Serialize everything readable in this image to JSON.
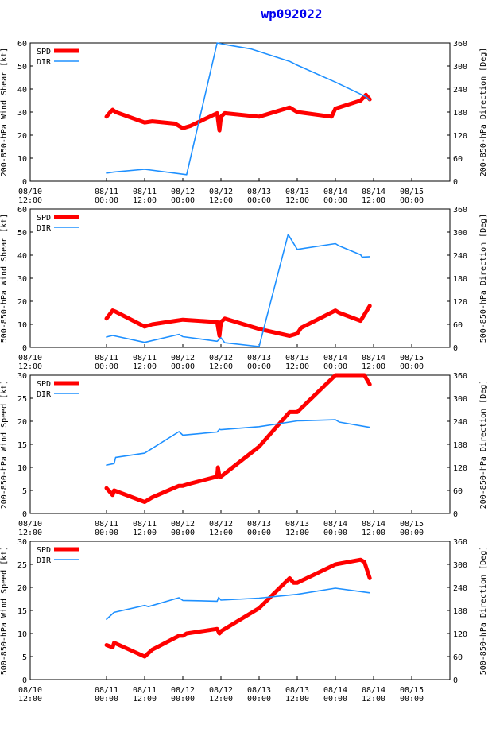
{
  "title": "wp092022",
  "colors": {
    "spd": "#ff0000",
    "dir": "#1e90ff",
    "axis": "#000000"
  },
  "x_ticks": [
    {
      "x": -1,
      "date": "08/10",
      "time": "12:00"
    },
    {
      "x": 0,
      "date": "08/11",
      "time": "00:00"
    },
    {
      "x": 0.5,
      "date": "08/11",
      "time": "12:00"
    },
    {
      "x": 1,
      "date": "08/12",
      "time": "00:00"
    },
    {
      "x": 1.5,
      "date": "08/12",
      "time": "12:00"
    },
    {
      "x": 2,
      "date": "08/13",
      "time": "00:00"
    },
    {
      "x": 2.5,
      "date": "08/13",
      "time": "12:00"
    },
    {
      "x": 3,
      "date": "08/14",
      "time": "00:00"
    },
    {
      "x": 3.5,
      "date": "08/14",
      "time": "12:00"
    },
    {
      "x": 4,
      "date": "08/15",
      "time": "00:00"
    }
  ],
  "chart_data": [
    {
      "type": "line",
      "ylabel": "200-850-hPa Wind Shear [kt]",
      "y2label": "200-850-hPa Direction [Deg]",
      "xlim": [
        -1,
        4.5
      ],
      "ylim": [
        0,
        60
      ],
      "y2lim": [
        0,
        360
      ],
      "yticks": [
        "0",
        "10",
        "20",
        "30",
        "40",
        "50",
        "60"
      ],
      "y2ticks": [
        "0",
        "60",
        "120",
        "180",
        "240",
        "300",
        "360"
      ],
      "legend": [
        "SPD",
        "DIR"
      ],
      "series": [
        {
          "name": "SPD",
          "axis": "left",
          "x": [
            0,
            0.05,
            0.08,
            0.12,
            0.5,
            0.6,
            0.9,
            1.0,
            1.1,
            1.45,
            1.48,
            1.5,
            1.55,
            2.0,
            2.4,
            2.5,
            2.95,
            3.0,
            3.33,
            3.4,
            3.45
          ],
          "y": [
            28,
            30,
            31,
            30,
            25.5,
            26,
            25,
            23,
            24,
            29.5,
            22,
            28,
            29.5,
            28,
            32,
            30,
            28,
            31.5,
            35,
            37.5,
            35.5
          ]
        },
        {
          "name": "DIR",
          "axis": "right",
          "x": [
            0,
            0.1,
            0.5,
            1.05,
            1.45,
            1.55,
            1.9,
            2.4,
            2.5,
            3.0,
            3.4,
            3.45
          ],
          "y": [
            21,
            24,
            31,
            17,
            360,
            356,
            344,
            312,
            302,
            258,
            220,
            211
          ]
        }
      ]
    },
    {
      "type": "line",
      "ylabel": "500-850-hPa Wind Shear [kt]",
      "y2label": "500-850-hPa Direction [Deg]",
      "xlim": [
        -1,
        4.5
      ],
      "ylim": [
        0,
        60
      ],
      "y2lim": [
        0,
        360
      ],
      "yticks": [
        "0",
        "10",
        "20",
        "30",
        "40",
        "50",
        "60"
      ],
      "y2ticks": [
        "0",
        "60",
        "120",
        "180",
        "240",
        "300",
        "360"
      ],
      "legend": [
        "SPD",
        "DIR"
      ],
      "series": [
        {
          "name": "SPD",
          "axis": "left",
          "x": [
            0,
            0.08,
            0.12,
            0.5,
            0.6,
            0.9,
            1.0,
            1.45,
            1.48,
            1.5,
            1.55,
            2.0,
            2.4,
            2.5,
            2.55,
            3.0,
            3.05,
            3.33,
            3.45
          ],
          "y": [
            12.5,
            16,
            15.5,
            9,
            10,
            11.5,
            12,
            11,
            5,
            11,
            12.5,
            8,
            5,
            6,
            8.5,
            16,
            15,
            11.5,
            18
          ]
        },
        {
          "name": "DIR",
          "axis": "right",
          "x": [
            0,
            0.08,
            0.5,
            0.95,
            1.0,
            1.45,
            1.5,
            1.55,
            2.0,
            2.38,
            2.5,
            3.0,
            3.05,
            3.33,
            3.35,
            3.45
          ],
          "y": [
            27,
            31,
            13,
            34,
            28,
            16,
            25,
            12,
            2,
            294,
            255,
            270,
            264,
            241,
            235,
            236
          ]
        }
      ]
    },
    {
      "type": "line",
      "ylabel": "200-850-hPa Wind Speed [kt]",
      "y2label": "200-850-hPa Direction [Deg]",
      "xlim": [
        -1,
        4.5
      ],
      "ylim": [
        0,
        30
      ],
      "y2lim": [
        0,
        360
      ],
      "yticks": [
        "0",
        "5",
        "10",
        "15",
        "20",
        "25",
        "30"
      ],
      "y2ticks": [
        "0",
        "60",
        "120",
        "180",
        "240",
        "300",
        "360"
      ],
      "legend": [
        "SPD",
        "DIR"
      ],
      "series": [
        {
          "name": "SPD",
          "axis": "left",
          "x": [
            0,
            0.08,
            0.1,
            0.5,
            0.6,
            0.95,
            1.0,
            1.1,
            1.45,
            1.46,
            1.48,
            1.5,
            2.0,
            2.4,
            2.5,
            3.0,
            3.38,
            3.45
          ],
          "y": [
            5.5,
            4,
            5,
            2.5,
            3.5,
            6,
            6,
            6.5,
            8,
            10,
            8,
            8,
            14.5,
            22,
            22,
            30,
            30,
            28
          ]
        },
        {
          "name": "DIR",
          "axis": "right",
          "x": [
            0,
            0.1,
            0.12,
            0.5,
            0.95,
            1.0,
            1.45,
            1.48,
            1.5,
            2.0,
            2.5,
            3.0,
            3.05,
            3.45
          ],
          "y": [
            126,
            130,
            146,
            157,
            213,
            204,
            212,
            219,
            218,
            226,
            241,
            244,
            238,
            224
          ]
        }
      ]
    },
    {
      "type": "line",
      "ylabel": "500-850-hPa Wind Speed [kt]",
      "y2label": "500-850-hPa Direction [Deg]",
      "xlim": [
        -1,
        4.5
      ],
      "ylim": [
        0,
        30
      ],
      "y2lim": [
        0,
        360
      ],
      "yticks": [
        "0",
        "5",
        "10",
        "15",
        "20",
        "25",
        "30"
      ],
      "y2ticks": [
        "0",
        "60",
        "120",
        "180",
        "240",
        "300",
        "360"
      ],
      "legend": [
        "SPD",
        "DIR"
      ],
      "series": [
        {
          "name": "SPD",
          "axis": "left",
          "x": [
            0,
            0.08,
            0.1,
            0.5,
            0.6,
            0.95,
            1.0,
            1.05,
            1.45,
            1.48,
            1.5,
            2.0,
            2.4,
            2.45,
            2.5,
            3.0,
            3.33,
            3.38,
            3.45
          ],
          "y": [
            7.5,
            7,
            8,
            5,
            6.5,
            9.5,
            9.5,
            10,
            11,
            10,
            10.5,
            15.5,
            22,
            21,
            21,
            25,
            26,
            25.5,
            22
          ]
        },
        {
          "name": "DIR",
          "axis": "right",
          "x": [
            0,
            0.1,
            0.5,
            0.55,
            0.95,
            1.0,
            1.45,
            1.47,
            1.5,
            2.0,
            2.5,
            3.0,
            3.45
          ],
          "y": [
            157,
            175,
            193,
            190,
            213,
            206,
            204,
            214,
            207,
            212,
            222,
            238,
            226
          ]
        }
      ]
    }
  ]
}
